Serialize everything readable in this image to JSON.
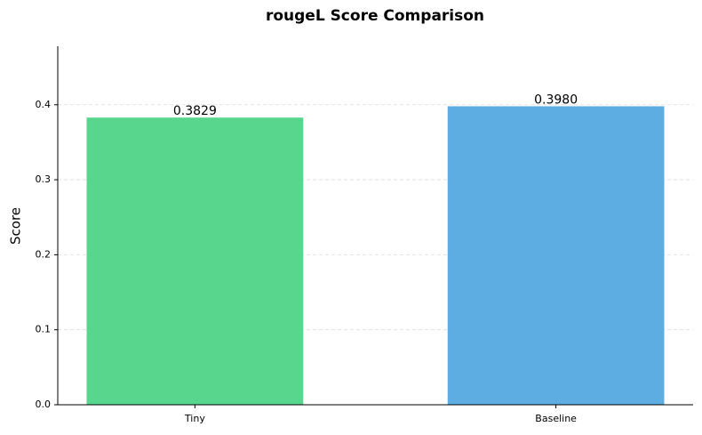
{
  "chart_data": {
    "type": "bar",
    "title": "rougeL Score Comparison",
    "y_label": "Score",
    "categories": [
      "Tiny",
      "Baseline"
    ],
    "values": [
      0.3829,
      0.398
    ],
    "value_labels": [
      "0.3829",
      "0.3980"
    ],
    "colors": [
      "#58d68d",
      "#5dade2"
    ],
    "ylim": [
      0,
      0.478
    ],
    "yticks": [
      {
        "value": 0,
        "label": "0.0"
      },
      0.1,
      0.2,
      0.3,
      0.4
    ],
    "grid": true
  }
}
